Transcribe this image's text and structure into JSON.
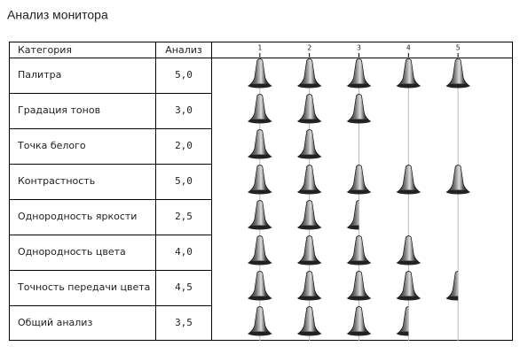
{
  "chart_data": {
    "type": "pictograph",
    "title": "Анализ монитора",
    "column_headers": [
      "Категория",
      "Анализ"
    ],
    "categories": [
      "Палитра",
      "Градация тонов",
      "Точка белого",
      "Контрастность",
      "Однородность яркости",
      "Однородность цвета",
      "Точность передачи цвета",
      "Общий анализ"
    ],
    "values": [
      5,
      3,
      2,
      5,
      2.5,
      4,
      4.5,
      3.5
    ],
    "value_labels": [
      "5,0",
      "3,0",
      "2,0",
      "5,0",
      "2,5",
      "4,0",
      "4,5",
      "3,5"
    ],
    "xlim": [
      0,
      6
    ],
    "xticks": [
      1,
      2,
      3,
      4,
      5
    ],
    "grid": true
  }
}
